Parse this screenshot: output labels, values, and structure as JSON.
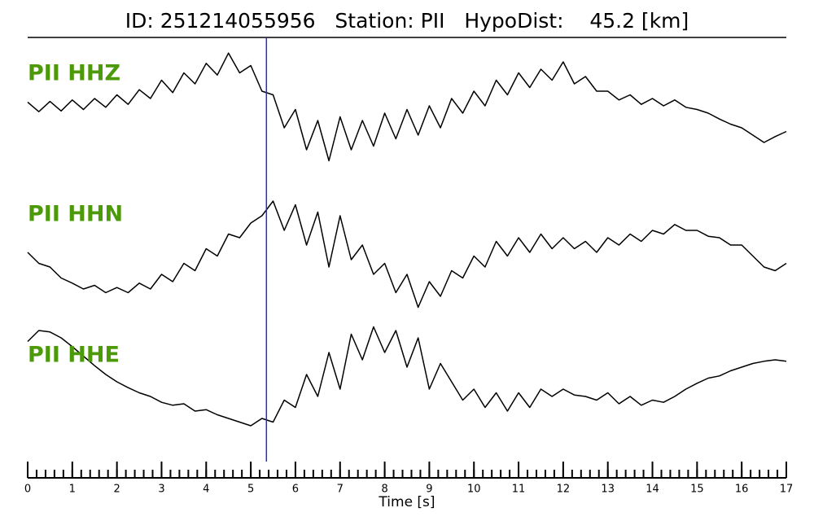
{
  "chart_data": {
    "type": "line",
    "title": "ID: 251214055956   Station: PII   HypoDist:    45.2 [km]",
    "xlabel": "Time [s]",
    "xlim": [
      0,
      17
    ],
    "xticks": [
      0,
      1,
      2,
      3,
      4,
      5,
      6,
      7,
      8,
      9,
      10,
      11,
      12,
      13,
      14,
      15,
      16,
      17
    ],
    "minor_tick_step": 0.2,
    "ylim": [
      -1,
      1
    ],
    "label_color": "#4c9a0a",
    "markers": [
      {
        "x": 5.35,
        "color": "#1f2fd0"
      }
    ],
    "x": [
      0,
      0.25,
      0.5,
      0.75,
      1,
      1.25,
      1.5,
      1.75,
      2,
      2.25,
      2.5,
      2.75,
      3,
      3.25,
      3.5,
      3.75,
      4,
      4.25,
      4.5,
      4.75,
      5,
      5.25,
      5.5,
      5.75,
      6,
      6.25,
      6.5,
      6.75,
      7,
      7.25,
      7.5,
      7.75,
      8,
      8.25,
      8.5,
      8.75,
      9,
      9.25,
      9.5,
      9.75,
      10,
      10.25,
      10.5,
      10.75,
      11,
      11.25,
      11.5,
      11.75,
      12,
      12.25,
      12.5,
      12.75,
      13,
      13.25,
      13.5,
      13.75,
      14,
      14.25,
      14.5,
      14.75,
      15,
      15.25,
      15.5,
      15.75,
      16,
      16.25,
      16.5,
      16.75,
      17
    ],
    "series": [
      {
        "name": "PII HHZ",
        "color": "#000000",
        "values": [
          0.05,
          -0.08,
          0.06,
          -0.07,
          0.08,
          -0.05,
          0.1,
          -0.02,
          0.15,
          0.02,
          0.22,
          0.1,
          0.35,
          0.18,
          0.45,
          0.3,
          0.58,
          0.42,
          0.72,
          0.45,
          0.55,
          0.2,
          0.15,
          -0.3,
          -0.05,
          -0.6,
          -0.2,
          -0.75,
          -0.15,
          -0.6,
          -0.2,
          -0.55,
          -0.1,
          -0.45,
          -0.05,
          -0.4,
          0.0,
          -0.3,
          0.1,
          -0.1,
          0.2,
          0.0,
          0.35,
          0.15,
          0.45,
          0.25,
          0.5,
          0.35,
          0.6,
          0.3,
          0.4,
          0.2,
          0.2,
          0.08,
          0.15,
          0.02,
          0.1,
          0.0,
          0.08,
          -0.02,
          -0.05,
          -0.1,
          -0.18,
          -0.25,
          -0.3,
          -0.4,
          -0.5,
          -0.42,
          -0.35
        ]
      },
      {
        "name": "PII HHN",
        "color": "#000000",
        "values": [
          0.0,
          -0.15,
          -0.2,
          -0.35,
          -0.42,
          -0.5,
          -0.45,
          -0.55,
          -0.48,
          -0.55,
          -0.42,
          -0.5,
          -0.3,
          -0.4,
          -0.15,
          -0.25,
          0.05,
          -0.05,
          0.25,
          0.2,
          0.4,
          0.5,
          0.7,
          0.3,
          0.65,
          0.1,
          0.55,
          -0.2,
          0.5,
          -0.1,
          0.1,
          -0.3,
          -0.15,
          -0.55,
          -0.3,
          -0.75,
          -0.4,
          -0.6,
          -0.25,
          -0.35,
          -0.05,
          -0.2,
          0.15,
          -0.05,
          0.2,
          0.0,
          0.25,
          0.05,
          0.2,
          0.05,
          0.15,
          0.0,
          0.2,
          0.1,
          0.25,
          0.15,
          0.3,
          0.25,
          0.38,
          0.3,
          0.3,
          0.22,
          0.2,
          0.1,
          0.1,
          -0.05,
          -0.2,
          -0.25,
          -0.15
        ]
      },
      {
        "name": "PII HHE",
        "color": "#000000",
        "values": [
          0.45,
          0.6,
          0.58,
          0.5,
          0.38,
          0.25,
          0.12,
          0.0,
          -0.1,
          -0.18,
          -0.25,
          -0.3,
          -0.38,
          -0.42,
          -0.4,
          -0.5,
          -0.48,
          -0.55,
          -0.6,
          -0.65,
          -0.7,
          -0.6,
          -0.65,
          -0.35,
          -0.45,
          0.0,
          -0.3,
          0.3,
          -0.2,
          0.55,
          0.2,
          0.65,
          0.3,
          0.6,
          0.1,
          0.5,
          -0.2,
          0.15,
          -0.1,
          -0.35,
          -0.2,
          -0.45,
          -0.25,
          -0.5,
          -0.25,
          -0.45,
          -0.2,
          -0.3,
          -0.2,
          -0.28,
          -0.3,
          -0.35,
          -0.25,
          -0.4,
          -0.3,
          -0.42,
          -0.35,
          -0.38,
          -0.3,
          -0.2,
          -0.12,
          -0.05,
          -0.02,
          0.05,
          0.1,
          0.15,
          0.18,
          0.2,
          0.18
        ]
      }
    ]
  }
}
